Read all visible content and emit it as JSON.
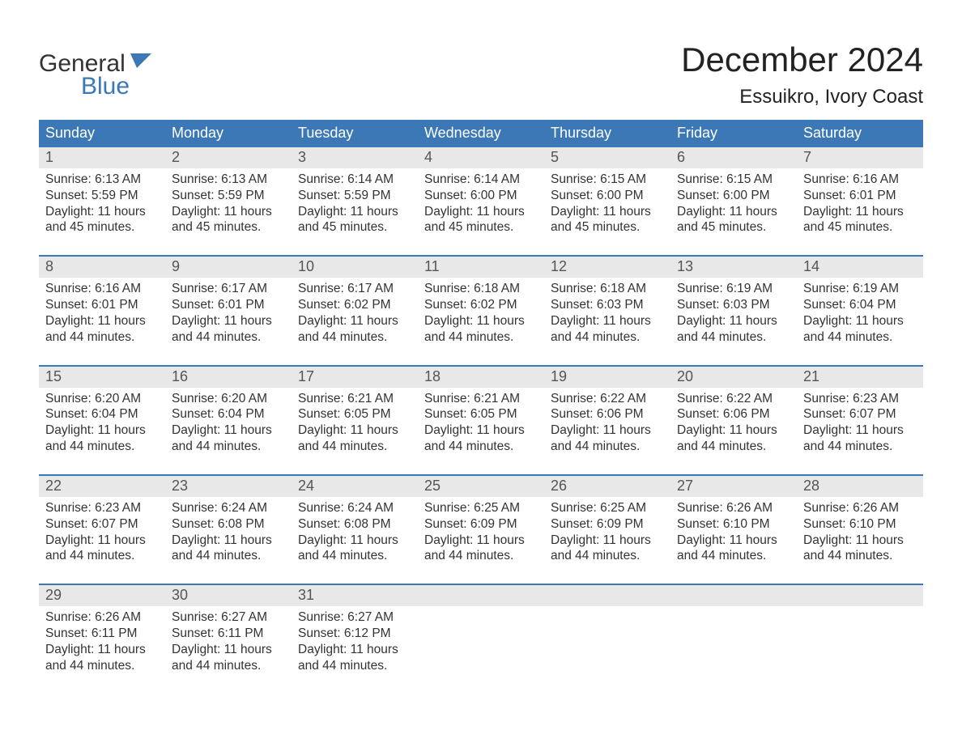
{
  "brand": {
    "word1": "General",
    "word2": "Blue",
    "word1_color": "#333333",
    "word2_color": "#3b78b5",
    "flag_color": "#3b78b5"
  },
  "title": "December 2024",
  "location": "Essuikro, Ivory Coast",
  "colors": {
    "header_bg": "#3b78b5",
    "header_text": "#ffffff",
    "daynum_bg": "#e8e8e8",
    "daynum_text": "#555555",
    "body_text": "#333333",
    "week_border": "#3b78b5",
    "page_bg": "#ffffff"
  },
  "day_names": [
    "Sunday",
    "Monday",
    "Tuesday",
    "Wednesday",
    "Thursday",
    "Friday",
    "Saturday"
  ],
  "weeks": [
    {
      "days": [
        {
          "num": "1",
          "sunrise": "Sunrise: 6:13 AM",
          "sunset": "Sunset: 5:59 PM",
          "daylight1": "Daylight: 11 hours",
          "daylight2": "and 45 minutes."
        },
        {
          "num": "2",
          "sunrise": "Sunrise: 6:13 AM",
          "sunset": "Sunset: 5:59 PM",
          "daylight1": "Daylight: 11 hours",
          "daylight2": "and 45 minutes."
        },
        {
          "num": "3",
          "sunrise": "Sunrise: 6:14 AM",
          "sunset": "Sunset: 5:59 PM",
          "daylight1": "Daylight: 11 hours",
          "daylight2": "and 45 minutes."
        },
        {
          "num": "4",
          "sunrise": "Sunrise: 6:14 AM",
          "sunset": "Sunset: 6:00 PM",
          "daylight1": "Daylight: 11 hours",
          "daylight2": "and 45 minutes."
        },
        {
          "num": "5",
          "sunrise": "Sunrise: 6:15 AM",
          "sunset": "Sunset: 6:00 PM",
          "daylight1": "Daylight: 11 hours",
          "daylight2": "and 45 minutes."
        },
        {
          "num": "6",
          "sunrise": "Sunrise: 6:15 AM",
          "sunset": "Sunset: 6:00 PM",
          "daylight1": "Daylight: 11 hours",
          "daylight2": "and 45 minutes."
        },
        {
          "num": "7",
          "sunrise": "Sunrise: 6:16 AM",
          "sunset": "Sunset: 6:01 PM",
          "daylight1": "Daylight: 11 hours",
          "daylight2": "and 45 minutes."
        }
      ]
    },
    {
      "days": [
        {
          "num": "8",
          "sunrise": "Sunrise: 6:16 AM",
          "sunset": "Sunset: 6:01 PM",
          "daylight1": "Daylight: 11 hours",
          "daylight2": "and 44 minutes."
        },
        {
          "num": "9",
          "sunrise": "Sunrise: 6:17 AM",
          "sunset": "Sunset: 6:01 PM",
          "daylight1": "Daylight: 11 hours",
          "daylight2": "and 44 minutes."
        },
        {
          "num": "10",
          "sunrise": "Sunrise: 6:17 AM",
          "sunset": "Sunset: 6:02 PM",
          "daylight1": "Daylight: 11 hours",
          "daylight2": "and 44 minutes."
        },
        {
          "num": "11",
          "sunrise": "Sunrise: 6:18 AM",
          "sunset": "Sunset: 6:02 PM",
          "daylight1": "Daylight: 11 hours",
          "daylight2": "and 44 minutes."
        },
        {
          "num": "12",
          "sunrise": "Sunrise: 6:18 AM",
          "sunset": "Sunset: 6:03 PM",
          "daylight1": "Daylight: 11 hours",
          "daylight2": "and 44 minutes."
        },
        {
          "num": "13",
          "sunrise": "Sunrise: 6:19 AM",
          "sunset": "Sunset: 6:03 PM",
          "daylight1": "Daylight: 11 hours",
          "daylight2": "and 44 minutes."
        },
        {
          "num": "14",
          "sunrise": "Sunrise: 6:19 AM",
          "sunset": "Sunset: 6:04 PM",
          "daylight1": "Daylight: 11 hours",
          "daylight2": "and 44 minutes."
        }
      ]
    },
    {
      "days": [
        {
          "num": "15",
          "sunrise": "Sunrise: 6:20 AM",
          "sunset": "Sunset: 6:04 PM",
          "daylight1": "Daylight: 11 hours",
          "daylight2": "and 44 minutes."
        },
        {
          "num": "16",
          "sunrise": "Sunrise: 6:20 AM",
          "sunset": "Sunset: 6:04 PM",
          "daylight1": "Daylight: 11 hours",
          "daylight2": "and 44 minutes."
        },
        {
          "num": "17",
          "sunrise": "Sunrise: 6:21 AM",
          "sunset": "Sunset: 6:05 PM",
          "daylight1": "Daylight: 11 hours",
          "daylight2": "and 44 minutes."
        },
        {
          "num": "18",
          "sunrise": "Sunrise: 6:21 AM",
          "sunset": "Sunset: 6:05 PM",
          "daylight1": "Daylight: 11 hours",
          "daylight2": "and 44 minutes."
        },
        {
          "num": "19",
          "sunrise": "Sunrise: 6:22 AM",
          "sunset": "Sunset: 6:06 PM",
          "daylight1": "Daylight: 11 hours",
          "daylight2": "and 44 minutes."
        },
        {
          "num": "20",
          "sunrise": "Sunrise: 6:22 AM",
          "sunset": "Sunset: 6:06 PM",
          "daylight1": "Daylight: 11 hours",
          "daylight2": "and 44 minutes."
        },
        {
          "num": "21",
          "sunrise": "Sunrise: 6:23 AM",
          "sunset": "Sunset: 6:07 PM",
          "daylight1": "Daylight: 11 hours",
          "daylight2": "and 44 minutes."
        }
      ]
    },
    {
      "days": [
        {
          "num": "22",
          "sunrise": "Sunrise: 6:23 AM",
          "sunset": "Sunset: 6:07 PM",
          "daylight1": "Daylight: 11 hours",
          "daylight2": "and 44 minutes."
        },
        {
          "num": "23",
          "sunrise": "Sunrise: 6:24 AM",
          "sunset": "Sunset: 6:08 PM",
          "daylight1": "Daylight: 11 hours",
          "daylight2": "and 44 minutes."
        },
        {
          "num": "24",
          "sunrise": "Sunrise: 6:24 AM",
          "sunset": "Sunset: 6:08 PM",
          "daylight1": "Daylight: 11 hours",
          "daylight2": "and 44 minutes."
        },
        {
          "num": "25",
          "sunrise": "Sunrise: 6:25 AM",
          "sunset": "Sunset: 6:09 PM",
          "daylight1": "Daylight: 11 hours",
          "daylight2": "and 44 minutes."
        },
        {
          "num": "26",
          "sunrise": "Sunrise: 6:25 AM",
          "sunset": "Sunset: 6:09 PM",
          "daylight1": "Daylight: 11 hours",
          "daylight2": "and 44 minutes."
        },
        {
          "num": "27",
          "sunrise": "Sunrise: 6:26 AM",
          "sunset": "Sunset: 6:10 PM",
          "daylight1": "Daylight: 11 hours",
          "daylight2": "and 44 minutes."
        },
        {
          "num": "28",
          "sunrise": "Sunrise: 6:26 AM",
          "sunset": "Sunset: 6:10 PM",
          "daylight1": "Daylight: 11 hours",
          "daylight2": "and 44 minutes."
        }
      ]
    },
    {
      "days": [
        {
          "num": "29",
          "sunrise": "Sunrise: 6:26 AM",
          "sunset": "Sunset: 6:11 PM",
          "daylight1": "Daylight: 11 hours",
          "daylight2": "and 44 minutes."
        },
        {
          "num": "30",
          "sunrise": "Sunrise: 6:27 AM",
          "sunset": "Sunset: 6:11 PM",
          "daylight1": "Daylight: 11 hours",
          "daylight2": "and 44 minutes."
        },
        {
          "num": "31",
          "sunrise": "Sunrise: 6:27 AM",
          "sunset": "Sunset: 6:12 PM",
          "daylight1": "Daylight: 11 hours",
          "daylight2": "and 44 minutes."
        },
        {
          "empty": true
        },
        {
          "empty": true
        },
        {
          "empty": true
        },
        {
          "empty": true
        }
      ]
    }
  ]
}
